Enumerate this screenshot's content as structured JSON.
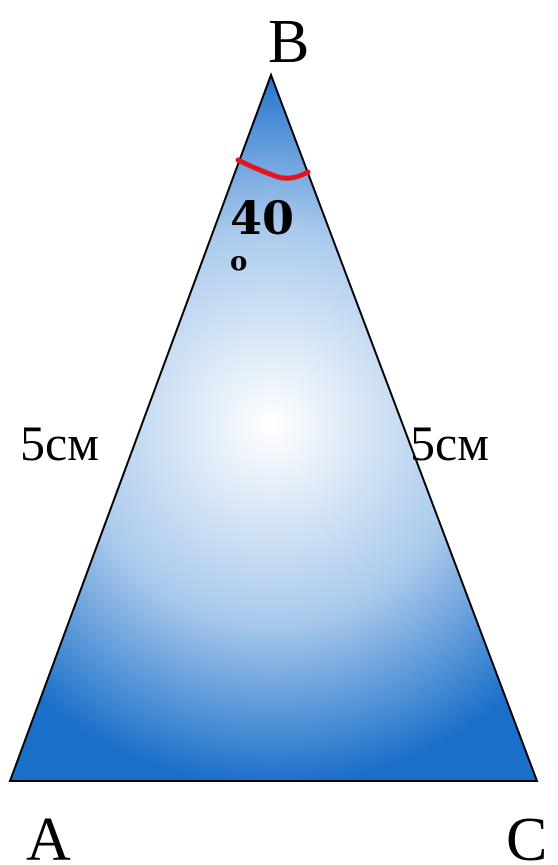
{
  "figure": {
    "vertices": {
      "top": "B",
      "bottom_left": "A",
      "bottom_right": "C"
    },
    "sides": {
      "left": "5см",
      "right": "5см"
    },
    "angle": {
      "value": "40",
      "superscript": "o",
      "marker_color": "#e8141b"
    },
    "colors": {
      "fill_center": "#ffffff",
      "fill_edge": "#1a6fc9",
      "stroke": "#000000"
    }
  }
}
